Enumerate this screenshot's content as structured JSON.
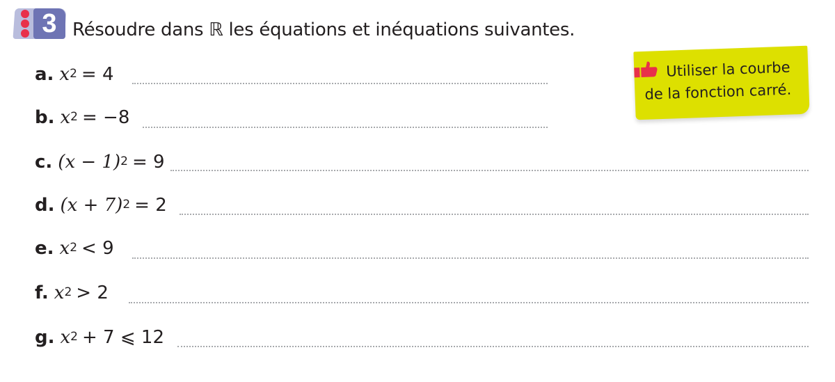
{
  "exercise": {
    "number": "3",
    "title": "Résoudre dans ℝ les équations et inéquations suivantes.",
    "colors": {
      "badge_back": "#b9bddd",
      "badge_front": "#6e74b4",
      "dots": "#e8304a",
      "tip_bg": "#dde000",
      "thumb": "#e8304a"
    }
  },
  "items": [
    {
      "label": "a.",
      "base": "x",
      "exp": "2",
      "rhs": "= 4"
    },
    {
      "label": "b.",
      "base": "x",
      "exp": "2",
      "rhs": "= −8"
    },
    {
      "label": "c.",
      "base": "(x − 1)",
      "exp": "2",
      "rhs": "= 9"
    },
    {
      "label": "d.",
      "base": "(x + 7)",
      "exp": "2",
      "rhs": "= 2"
    },
    {
      "label": "e.",
      "base": "x",
      "exp": "2",
      "rhs": "< 9"
    },
    {
      "label": "f.",
      "base": "x",
      "exp": "2",
      "rhs": "> 2"
    },
    {
      "label": "g.",
      "base": "x",
      "exp": "2",
      "rhs": "+ 7 ⩽ 12"
    }
  ],
  "tip": {
    "icon": "thumbs-up-icon",
    "text": "Utiliser la courbe de la fonction carré."
  }
}
